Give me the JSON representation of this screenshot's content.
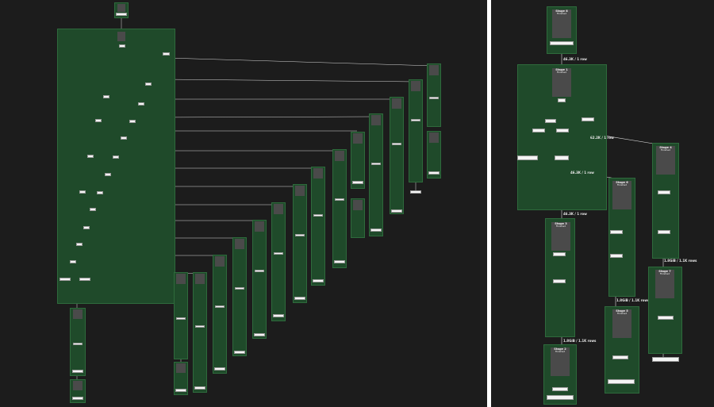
{
  "right": {
    "stage8": {
      "title": "Stage 8",
      "sub": "Finished"
    },
    "stage1": {
      "title": "Stage 1",
      "sub": "Finished"
    },
    "stage3": {
      "title": "Stage 3",
      "sub": "Finished"
    },
    "stage6": {
      "title": "Stage 6",
      "sub": "Finished"
    },
    "stage4": {
      "title": "Stage 4",
      "sub": "Finished"
    },
    "stage5": {
      "title": "Stage 5",
      "sub": "Finished"
    },
    "stage7": {
      "title": "Stage 7",
      "sub": "Finished"
    },
    "stage2": {
      "title": "Stage 2",
      "sub": "Finished"
    },
    "edges": {
      "e1": "46.3K / 1 row",
      "e2": "62.2K / 1 row",
      "e3": "46.3K / 1 row",
      "e4": "46.3K / 1 row",
      "e5": "1.8GiB / 1.1K rows",
      "e6": "1.8GiB / 1.1K rows",
      "e7": "1.8GiB / 1.1K rows"
    }
  }
}
